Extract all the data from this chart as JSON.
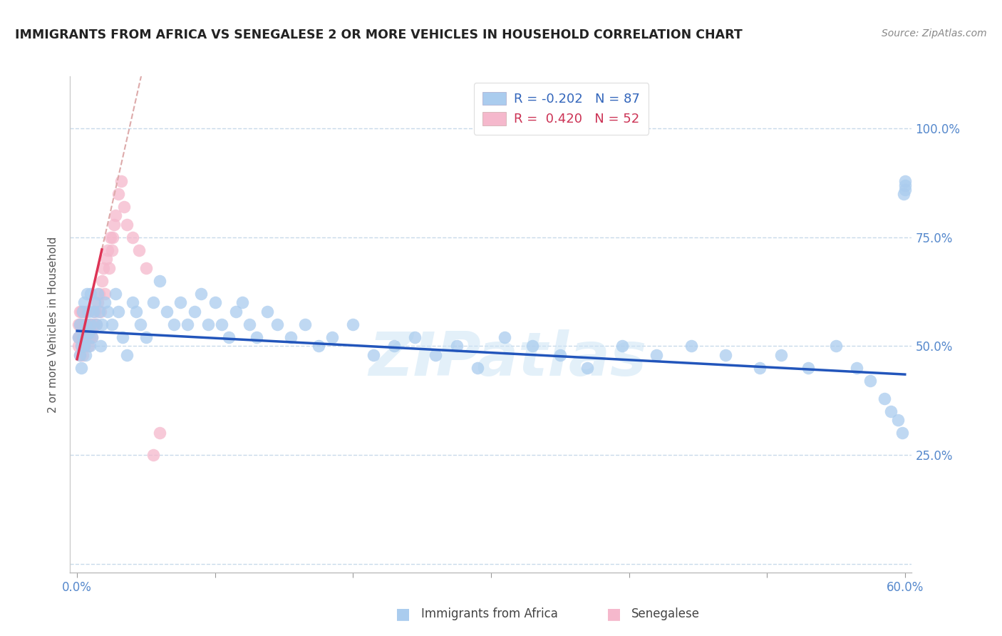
{
  "title": "IMMIGRANTS FROM AFRICA VS SENEGALESE 2 OR MORE VEHICLES IN HOUSEHOLD CORRELATION CHART",
  "source": "Source: ZipAtlas.com",
  "ylabel": "2 or more Vehicles in Household",
  "legend_labels": [
    "Immigrants from Africa",
    "Senegalese"
  ],
  "R_blue": -0.202,
  "N_blue": 87,
  "R_pink": 0.42,
  "N_pink": 52,
  "blue_color": "#aaccee",
  "pink_color": "#f5b8cc",
  "trend_blue_color": "#2255bb",
  "trend_pink_solid_color": "#dd3355",
  "trend_pink_dash_color": "#ddaaaa",
  "watermark": "ZIPatlas",
  "xlim": [
    -0.005,
    0.605
  ],
  "ylim": [
    -0.02,
    1.12
  ],
  "ytick_vals": [
    0.0,
    0.25,
    0.5,
    0.75,
    1.0
  ],
  "ytick_labels": [
    "",
    "25.0%",
    "50.0%",
    "75.0%",
    "100.0%"
  ],
  "xtick_vals": [
    0.0,
    0.1,
    0.2,
    0.3,
    0.4,
    0.5,
    0.6
  ],
  "xtick_labels": [
    "0.0%",
    "",
    "",
    "",
    "",
    "",
    "60.0%"
  ],
  "blue_x": [
    0.001,
    0.002,
    0.002,
    0.003,
    0.003,
    0.004,
    0.004,
    0.005,
    0.005,
    0.006,
    0.006,
    0.007,
    0.008,
    0.008,
    0.009,
    0.01,
    0.01,
    0.011,
    0.012,
    0.013,
    0.014,
    0.015,
    0.016,
    0.017,
    0.018,
    0.02,
    0.022,
    0.025,
    0.028,
    0.03,
    0.033,
    0.036,
    0.04,
    0.043,
    0.046,
    0.05,
    0.055,
    0.06,
    0.065,
    0.07,
    0.075,
    0.08,
    0.085,
    0.09,
    0.095,
    0.1,
    0.105,
    0.11,
    0.115,
    0.12,
    0.125,
    0.13,
    0.138,
    0.145,
    0.155,
    0.165,
    0.175,
    0.185,
    0.2,
    0.215,
    0.23,
    0.245,
    0.26,
    0.275,
    0.29,
    0.31,
    0.33,
    0.35,
    0.37,
    0.395,
    0.42,
    0.445,
    0.47,
    0.495,
    0.51,
    0.53,
    0.55,
    0.565,
    0.575,
    0.585,
    0.59,
    0.595,
    0.598,
    0.599,
    0.6,
    0.6,
    0.6
  ],
  "blue_y": [
    0.52,
    0.55,
    0.48,
    0.5,
    0.45,
    0.58,
    0.52,
    0.6,
    0.5,
    0.55,
    0.48,
    0.62,
    0.53,
    0.58,
    0.5,
    0.55,
    0.62,
    0.52,
    0.58,
    0.6,
    0.55,
    0.62,
    0.58,
    0.5,
    0.55,
    0.6,
    0.58,
    0.55,
    0.62,
    0.58,
    0.52,
    0.48,
    0.6,
    0.58,
    0.55,
    0.52,
    0.6,
    0.65,
    0.58,
    0.55,
    0.6,
    0.55,
    0.58,
    0.62,
    0.55,
    0.6,
    0.55,
    0.52,
    0.58,
    0.6,
    0.55,
    0.52,
    0.58,
    0.55,
    0.52,
    0.55,
    0.5,
    0.52,
    0.55,
    0.48,
    0.5,
    0.52,
    0.48,
    0.5,
    0.45,
    0.52,
    0.5,
    0.48,
    0.45,
    0.5,
    0.48,
    0.5,
    0.48,
    0.45,
    0.48,
    0.45,
    0.5,
    0.45,
    0.42,
    0.38,
    0.35,
    0.33,
    0.3,
    0.85,
    0.86,
    0.87,
    0.88
  ],
  "pink_x": [
    0.001,
    0.001,
    0.001,
    0.002,
    0.002,
    0.002,
    0.002,
    0.003,
    0.003,
    0.003,
    0.003,
    0.004,
    0.004,
    0.004,
    0.005,
    0.005,
    0.005,
    0.006,
    0.006,
    0.007,
    0.007,
    0.008,
    0.008,
    0.009,
    0.01,
    0.011,
    0.012,
    0.013,
    0.014,
    0.015,
    0.016,
    0.017,
    0.018,
    0.019,
    0.02,
    0.021,
    0.022,
    0.023,
    0.024,
    0.025,
    0.026,
    0.027,
    0.028,
    0.03,
    0.032,
    0.034,
    0.036,
    0.04,
    0.045,
    0.05,
    0.055,
    0.06
  ],
  "pink_y": [
    0.52,
    0.5,
    0.55,
    0.48,
    0.52,
    0.55,
    0.58,
    0.5,
    0.52,
    0.55,
    0.58,
    0.48,
    0.52,
    0.55,
    0.52,
    0.5,
    0.55,
    0.52,
    0.58,
    0.55,
    0.52,
    0.5,
    0.55,
    0.52,
    0.55,
    0.52,
    0.55,
    0.58,
    0.55,
    0.6,
    0.62,
    0.58,
    0.65,
    0.68,
    0.62,
    0.7,
    0.72,
    0.68,
    0.75,
    0.72,
    0.75,
    0.78,
    0.8,
    0.85,
    0.88,
    0.82,
    0.78,
    0.75,
    0.72,
    0.68,
    0.25,
    0.3
  ],
  "trend_blue_x0": 0.0,
  "trend_blue_x1": 0.6,
  "trend_blue_y0": 0.535,
  "trend_blue_y1": 0.435,
  "trend_pink_slope": 14.0,
  "trend_pink_intercept": 0.47,
  "trend_pink_solid_x0": 0.0,
  "trend_pink_solid_x1": 0.018,
  "trend_pink_dash_x0": 0.018,
  "trend_pink_dash_x1": 0.085
}
